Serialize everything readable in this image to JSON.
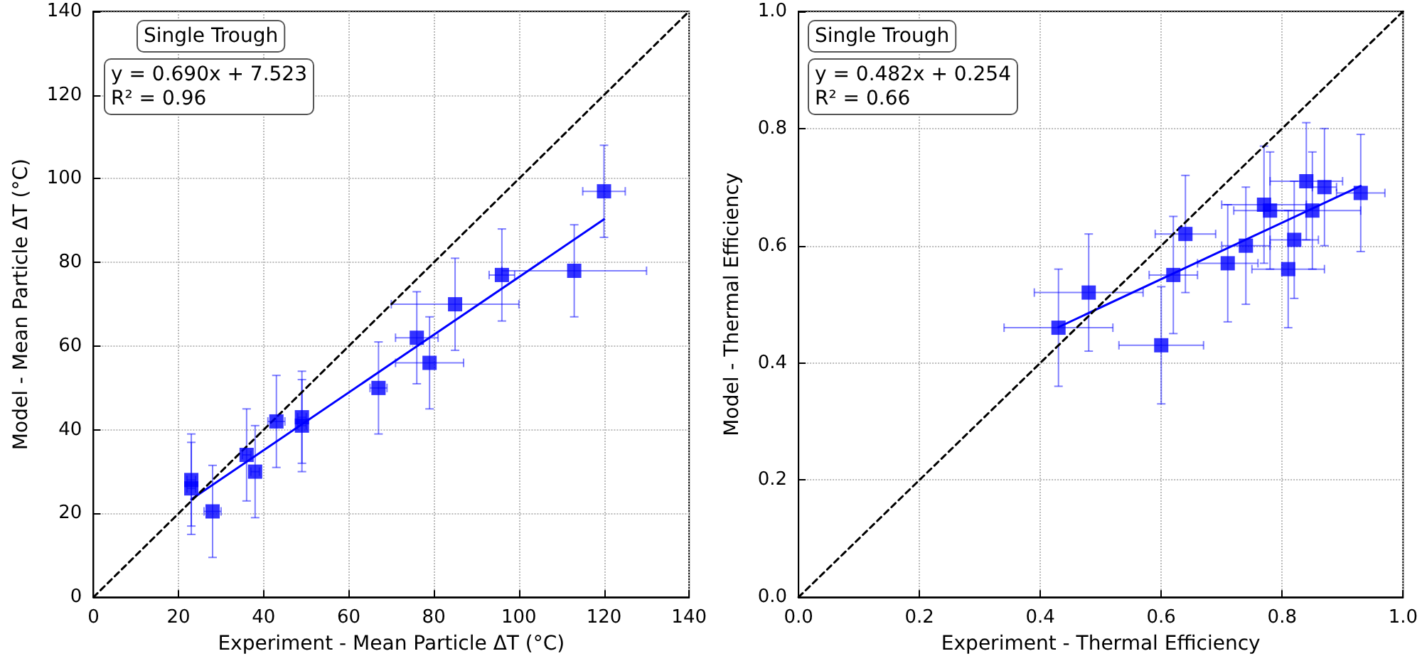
{
  "chart_data": [
    {
      "type": "scatter",
      "xlabel": "Experiment - Mean Particle ΔT (°C)",
      "ylabel": "Model - Mean Particle ΔT (°C)",
      "xlim": [
        0,
        140
      ],
      "ylim": [
        0,
        140
      ],
      "xticks": [
        0,
        20,
        40,
        60,
        80,
        100,
        120,
        140
      ],
      "yticks": [
        0,
        20,
        40,
        60,
        80,
        100,
        120,
        140
      ],
      "grid": true,
      "annotations": [
        "Single Trough",
        "y = 0.690x + 7.523\nR² = 0.96"
      ],
      "series": [
        {
          "type": "scatter",
          "marker": "square",
          "color": "#0000ff",
          "x": [
            23,
            23,
            28,
            36,
            38,
            43,
            49,
            49,
            67,
            76,
            79,
            85,
            96,
            113,
            120
          ],
          "values": [
            28,
            26,
            20.5,
            34,
            30,
            42,
            43,
            41,
            50,
            62,
            56,
            70,
            77,
            78,
            97
          ],
          "errors": [
            11,
            11,
            11,
            11,
            11,
            11,
            11,
            11,
            11,
            11,
            11,
            11,
            11,
            11,
            11
          ],
          "xerrors": [
            1,
            1,
            2,
            1,
            1,
            2,
            1,
            1,
            2,
            5,
            8,
            15,
            3,
            17,
            5
          ]
        },
        {
          "type": "line",
          "marker": "none",
          "line_style": "solid",
          "color": "#0000ff",
          "x": [
            23,
            120
          ],
          "values": [
            23.4,
            90.3
          ]
        },
        {
          "type": "line",
          "marker": "none",
          "line_style": "dashed",
          "color": "#000000",
          "x": [
            0,
            140
          ],
          "values": [
            0,
            140
          ]
        }
      ]
    },
    {
      "type": "scatter",
      "xlabel": "Experiment - Thermal Efficiency",
      "ylabel": "Model - Thermal Efficiency",
      "xlim": [
        0,
        1
      ],
      "ylim": [
        0,
        1
      ],
      "xticks": [
        {
          "value": 0,
          "label": "0.0"
        },
        0.2,
        0.4,
        0.6,
        0.8,
        {
          "value": 1,
          "label": "1.0"
        }
      ],
      "yticks": [
        {
          "value": 0,
          "label": "0.0"
        },
        0.2,
        0.4,
        0.6,
        0.8,
        {
          "value": 1,
          "label": "1.0"
        }
      ],
      "grid": true,
      "annotations": [
        "Single Trough",
        "y = 0.482x + 0.254\nR² = 0.66"
      ],
      "series": [
        {
          "type": "scatter",
          "marker": "square",
          "color": "#0000ff",
          "x": [
            0.43,
            0.48,
            0.6,
            0.62,
            0.64,
            0.71,
            0.74,
            0.77,
            0.78,
            0.81,
            0.82,
            0.84,
            0.85,
            0.87,
            0.93
          ],
          "values": [
            0.46,
            0.52,
            0.43,
            0.55,
            0.62,
            0.57,
            0.6,
            0.67,
            0.66,
            0.56,
            0.61,
            0.71,
            0.66,
            0.7,
            0.69
          ],
          "errors": [
            0.1,
            0.1,
            0.1,
            0.1,
            0.1,
            0.1,
            0.1,
            0.1,
            0.1,
            0.1,
            0.1,
            0.1,
            0.1,
            0.1,
            0.1
          ],
          "xerrors": [
            0.09,
            0.09,
            0.07,
            0.04,
            0.05,
            0.05,
            0.04,
            0.07,
            0.06,
            0.06,
            0.04,
            0.06,
            0.08,
            0.02,
            0.04
          ]
        },
        {
          "type": "line",
          "marker": "none",
          "line_style": "solid",
          "color": "#0000ff",
          "x": [
            0.43,
            0.93
          ],
          "values": [
            0.461,
            0.702
          ]
        },
        {
          "type": "line",
          "marker": "none",
          "line_style": "dashed",
          "color": "#000000",
          "x": [
            0,
            1
          ],
          "values": [
            0,
            1
          ]
        }
      ]
    }
  ]
}
